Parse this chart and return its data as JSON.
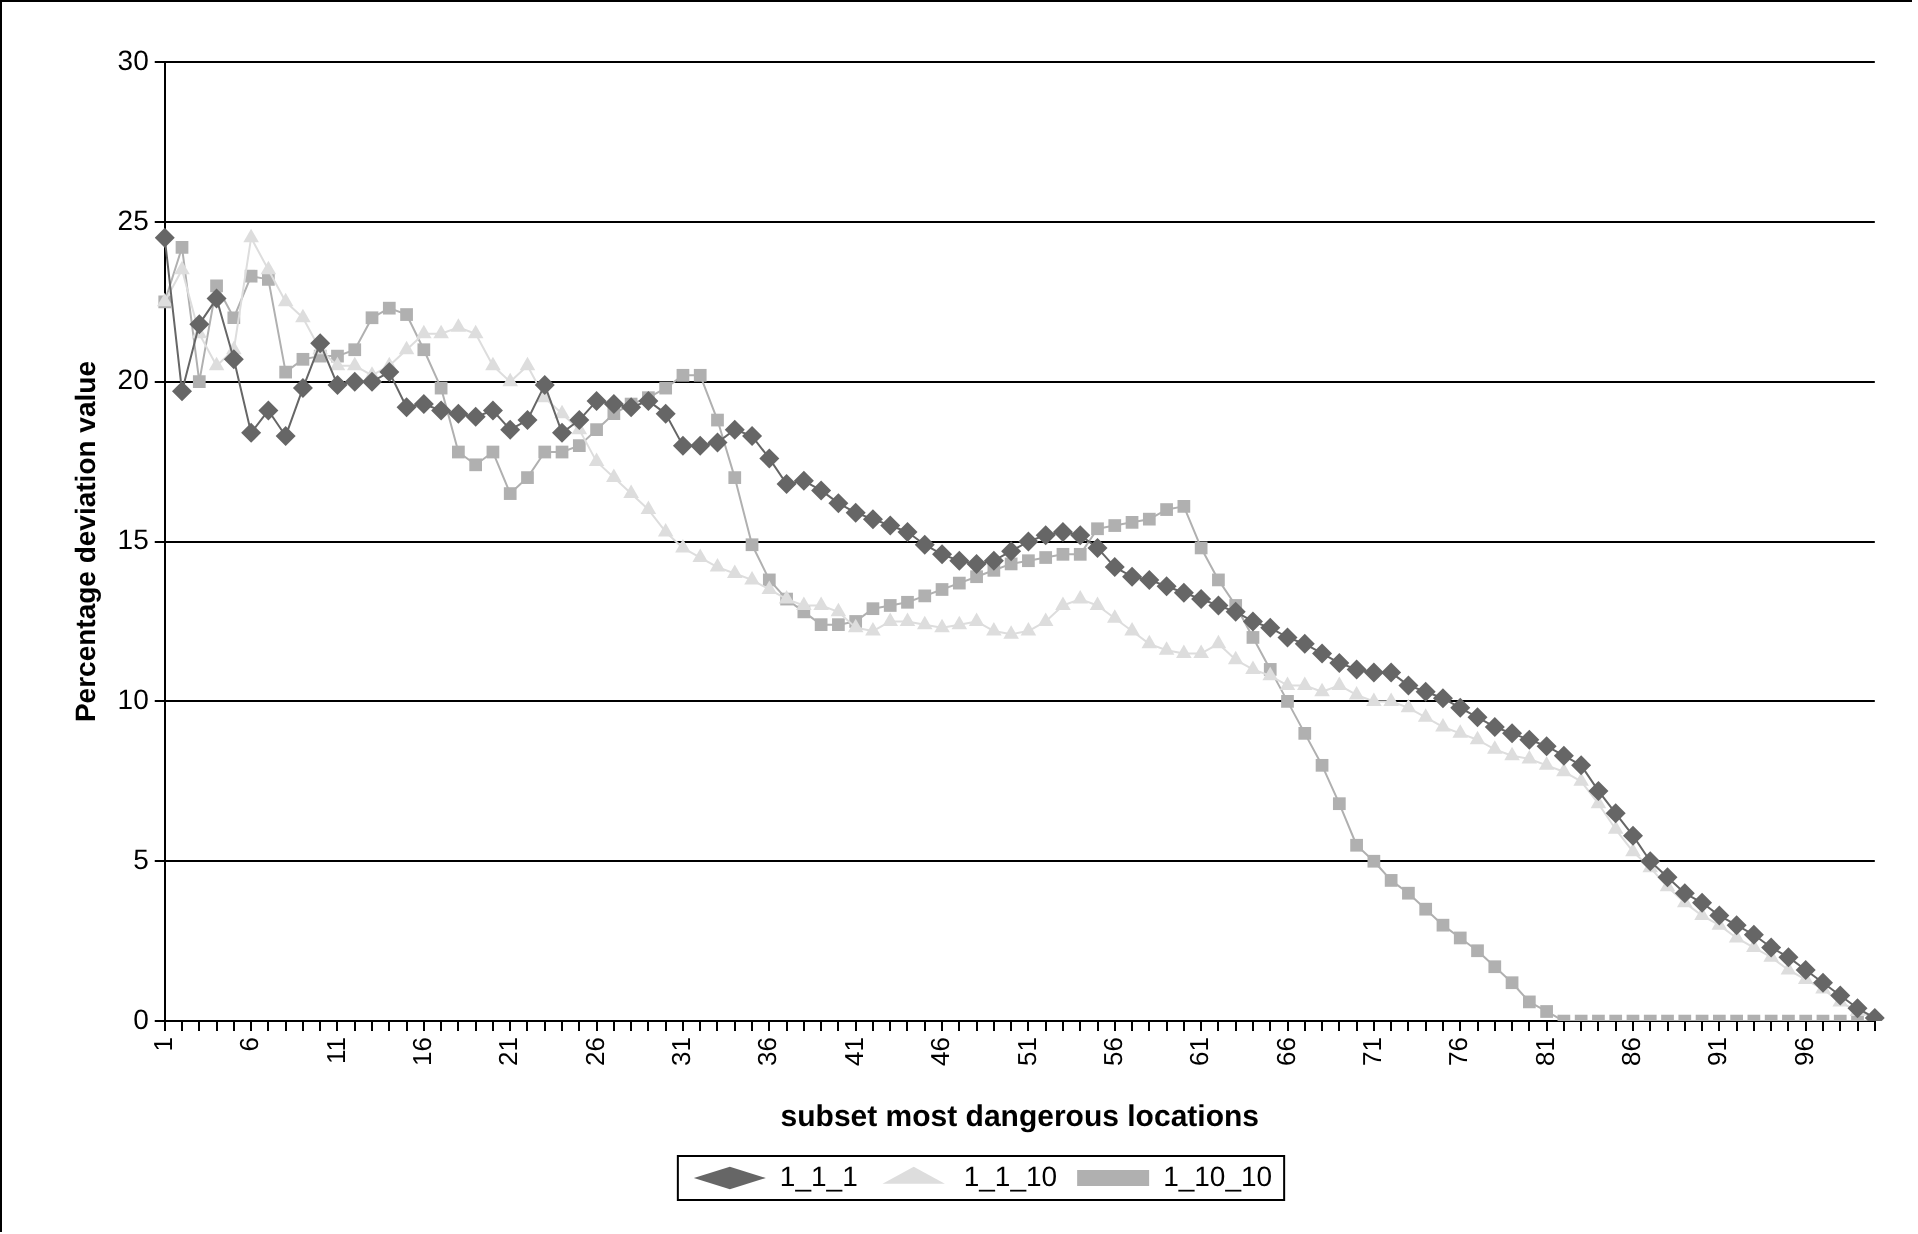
{
  "chart_data": {
    "type": "line",
    "xlabel": "subset most dangerous locations",
    "ylabel": "Percentage deviation value",
    "categories": [
      "1",
      null,
      null,
      null,
      null,
      "6",
      null,
      null,
      null,
      null,
      "11",
      null,
      null,
      null,
      null,
      "16",
      null,
      null,
      null,
      null,
      "21",
      null,
      null,
      null,
      null,
      "26",
      null,
      null,
      null,
      null,
      "31",
      null,
      null,
      null,
      null,
      "36",
      null,
      null,
      null,
      null,
      "41",
      null,
      null,
      null,
      null,
      "46",
      null,
      null,
      null,
      null,
      "51",
      null,
      null,
      null,
      null,
      "56",
      null,
      null,
      null,
      null,
      "61",
      null,
      null,
      null,
      null,
      "66",
      null,
      null,
      null,
      null,
      "71",
      null,
      null,
      null,
      null,
      "76",
      null,
      null,
      null,
      null,
      "81",
      null,
      null,
      null,
      null,
      "86",
      null,
      null,
      null,
      null,
      "91",
      null,
      null,
      null,
      null,
      "96",
      null,
      null,
      null,
      null
    ],
    "series": [
      {
        "name": "1_1_1",
        "color": "#666666",
        "marker": "diamond",
        "values": [
          24.5,
          19.7,
          21.8,
          22.6,
          20.7,
          18.4,
          19.1,
          18.3,
          19.8,
          21.2,
          19.9,
          20.0,
          20.0,
          20.3,
          19.2,
          19.3,
          19.1,
          19.0,
          18.9,
          19.1,
          18.5,
          18.8,
          19.9,
          18.4,
          18.8,
          19.4,
          19.3,
          19.2,
          19.4,
          19.0,
          18.0,
          18.0,
          18.1,
          18.5,
          18.3,
          17.6,
          16.8,
          16.9,
          16.6,
          16.2,
          15.9,
          15.7,
          15.5,
          15.3,
          14.9,
          14.6,
          14.4,
          14.3,
          14.4,
          14.7,
          15.0,
          15.2,
          15.3,
          15.2,
          14.8,
          14.2,
          13.9,
          13.8,
          13.6,
          13.4,
          13.2,
          13.0,
          12.8,
          12.5,
          12.3,
          12.0,
          11.8,
          11.5,
          11.2,
          11.0,
          10.9,
          10.9,
          10.5,
          10.3,
          10.1,
          9.8,
          9.5,
          9.2,
          9.0,
          8.8,
          8.6,
          8.3,
          8.0,
          7.2,
          6.5,
          5.8,
          5.0,
          4.5,
          4.0,
          3.7,
          3.3,
          3.0,
          2.7,
          2.3,
          2.0,
          1.6,
          1.2,
          0.8,
          0.4,
          0.1
        ]
      },
      {
        "name": "1_1_10",
        "color": "#dddddd",
        "marker": "triangle",
        "values": [
          22.5,
          23.5,
          21.5,
          20.5,
          21.0,
          24.5,
          23.5,
          22.5,
          22.0,
          21.0,
          20.5,
          20.5,
          20.2,
          20.5,
          21.0,
          21.5,
          21.5,
          21.7,
          21.5,
          20.5,
          20.0,
          20.5,
          19.5,
          19.0,
          18.5,
          17.5,
          17.0,
          16.5,
          16.0,
          15.3,
          14.8,
          14.5,
          14.2,
          14.0,
          13.8,
          13.5,
          13.2,
          13.0,
          13.0,
          12.8,
          12.3,
          12.2,
          12.5,
          12.5,
          12.4,
          12.3,
          12.4,
          12.5,
          12.2,
          12.1,
          12.2,
          12.5,
          13.0,
          13.2,
          13.0,
          12.6,
          12.2,
          11.8,
          11.6,
          11.5,
          11.5,
          11.8,
          11.3,
          11.0,
          10.8,
          10.5,
          10.5,
          10.3,
          10.5,
          10.2,
          10.0,
          10.0,
          9.8,
          9.5,
          9.2,
          9.0,
          8.8,
          8.5,
          8.3,
          8.2,
          8.0,
          7.8,
          7.5,
          6.8,
          6.0,
          5.3,
          4.8,
          4.2,
          3.7,
          3.3,
          3.0,
          2.6,
          2.3,
          2.0,
          1.6,
          1.3,
          1.0,
          0.6,
          0.3,
          0.1
        ]
      },
      {
        "name": "1_10_10",
        "color": "#b0b0b0",
        "marker": "square",
        "values": [
          22.5,
          24.2,
          20.0,
          23.0,
          22.0,
          23.3,
          23.2,
          20.3,
          20.7,
          20.8,
          20.8,
          21.0,
          22.0,
          22.3,
          22.1,
          21.0,
          19.8,
          17.8,
          17.4,
          17.8,
          16.5,
          17.0,
          17.8,
          17.8,
          18.0,
          18.5,
          19.0,
          19.3,
          19.5,
          19.8,
          20.2,
          20.2,
          18.8,
          17.0,
          14.9,
          13.8,
          13.2,
          12.8,
          12.4,
          12.4,
          12.5,
          12.9,
          13.0,
          13.1,
          13.3,
          13.5,
          13.7,
          13.9,
          14.1,
          14.3,
          14.4,
          14.5,
          14.6,
          14.6,
          15.4,
          15.5,
          15.6,
          15.7,
          16.0,
          16.1,
          14.8,
          13.8,
          13.0,
          12.0,
          11.0,
          10.0,
          9.0,
          8.0,
          6.8,
          5.5,
          5.0,
          4.4,
          4.0,
          3.5,
          3.0,
          2.6,
          2.2,
          1.7,
          1.2,
          0.6,
          0.3,
          0,
          0,
          0,
          0,
          0,
          0,
          0,
          0,
          0,
          0,
          0,
          0,
          0,
          0,
          0,
          0,
          0,
          0,
          0
        ]
      }
    ],
    "ylim": [
      0,
      30
    ],
    "yticks": [
      0,
      5,
      10,
      15,
      20,
      25,
      30
    ],
    "grid": "y",
    "legend": "bottom",
    "line_style": "solid"
  }
}
